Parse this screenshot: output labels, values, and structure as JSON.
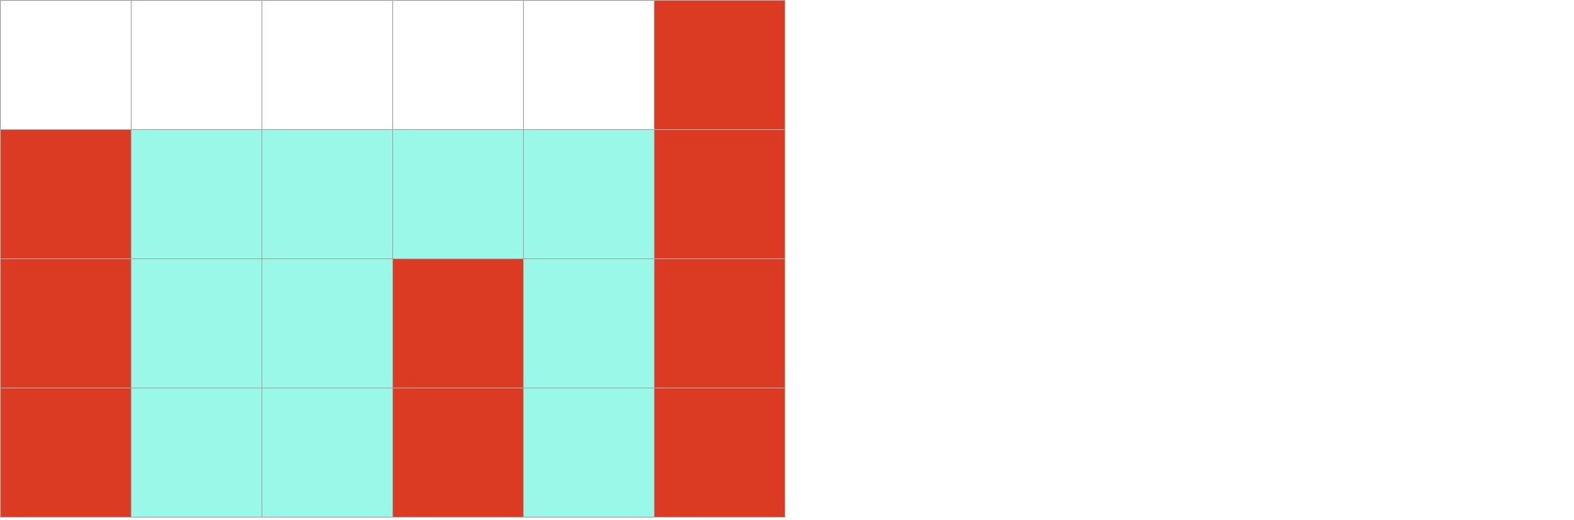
{
  "game": {
    "rows": 4,
    "cols": 6,
    "colors": {
      "empty": "#ffffff",
      "red": "#db3b23",
      "cyan": "#9af8e9",
      "grid_line": "#a8a8a8"
    },
    "grid": [
      [
        "empty",
        "empty",
        "empty",
        "empty",
        "empty",
        "red"
      ],
      [
        "red",
        "cyan",
        "cyan",
        "cyan",
        "cyan",
        "red"
      ],
      [
        "red",
        "cyan",
        "cyan",
        "red",
        "cyan",
        "red"
      ],
      [
        "red",
        "cyan",
        "cyan",
        "red",
        "cyan",
        "red"
      ]
    ]
  }
}
